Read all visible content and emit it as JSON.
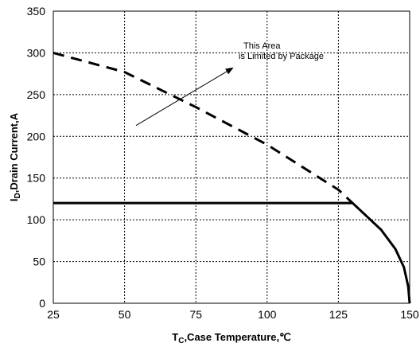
{
  "chart_data": {
    "type": "line",
    "title": "",
    "xlabel": {
      "main": "T",
      "sub": "C",
      "rest": ",Case Temperature,℃"
    },
    "ylabel": {
      "main": "I",
      "sub": "D",
      "rest": ",Drain Current,A"
    },
    "xlim": [
      25,
      150
    ],
    "ylim": [
      0,
      350
    ],
    "x_ticks": [
      25,
      50,
      75,
      100,
      125,
      150
    ],
    "y_ticks": [
      0,
      50,
      100,
      150,
      200,
      250,
      300,
      350
    ],
    "grid": true,
    "series": [
      {
        "style": "dashed",
        "color": "#000000",
        "x": [
          25,
          50,
          75,
          100,
          125,
          130
        ],
        "y": [
          300,
          277,
          235,
          190,
          136,
          120
        ]
      },
      {
        "style": "solid",
        "color": "#000000",
        "x": [
          25,
          130,
          135,
          140,
          145,
          148,
          149.5,
          150
        ],
        "y": [
          120,
          120,
          104,
          88,
          65,
          43,
          20,
          0
        ]
      }
    ],
    "annotation": {
      "lines": [
        "This Area",
        "is Limited by Package"
      ],
      "arrow_from": [
        54,
        213
      ],
      "arrow_to": [
        88,
        282
      ]
    }
  }
}
